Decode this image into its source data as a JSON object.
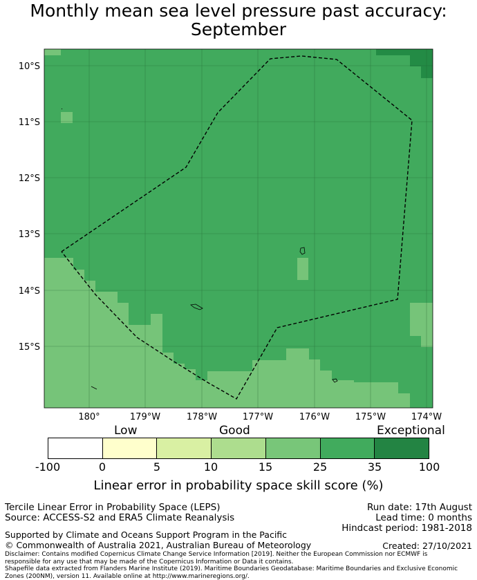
{
  "title_line1": "Monthly mean sea level pressure past accuracy:",
  "title_line2": "September",
  "map": {
    "lat_labels": [
      "10°S",
      "11°S",
      "12°S",
      "13°S",
      "14°S",
      "15°S"
    ],
    "lon_labels": [
      "180°",
      "179°W",
      "178°W",
      "177°W",
      "176°W",
      "175°W",
      "174°W"
    ],
    "colors": {
      "good_mid": "#41aa5d",
      "good_low": "#76c479",
      "exceptional": "#238b45"
    }
  },
  "colorbar": {
    "categories": [
      "Low",
      "Good",
      "Exceptional"
    ],
    "ticks": [
      "-100",
      "0",
      "5",
      "10",
      "15",
      "25",
      "35",
      "100"
    ],
    "colors": [
      "#ffffff",
      "#ffffcc",
      "#d9f0a3",
      "#addd8e",
      "#78c679",
      "#41ab5d",
      "#238443"
    ],
    "label": "Linear error in probability space skill score (%)"
  },
  "footer": {
    "left1": "Tercile Linear Error in Probability Space (LEPS)",
    "left2": "Source: ACCESS-S2 and ERA5 Climate Reanalysis",
    "left3": "Supported by Climate and Oceans Support Program in the Pacific",
    "left4": "© Commonwealth of Australia 2021, Australian Bureau of Meteorology",
    "right1": "Run date: 17th August",
    "right2": "Lead time: 0 months",
    "right3": "Hindcast period: 1981-2018",
    "right4": "Created: 27/10/2021",
    "disclaimer1": "Disclaimer: Contains modified Copernicus Climate Change Service Information [2019]. Neither the European Commission nor ECMWF is",
    "disclaimer2": "responsible for any use that may be made of the Copernicus Information or Data it contains.",
    "disclaimer3": "Shapefile data extracted from Flanders Marine Institute (2019). Maritime Boundaries Geodatabase: Maritime Boundaries and Exclusive Economic",
    "disclaimer4": "Zones (200NM), version 11. Available online at http://www.marineregions.org/."
  }
}
